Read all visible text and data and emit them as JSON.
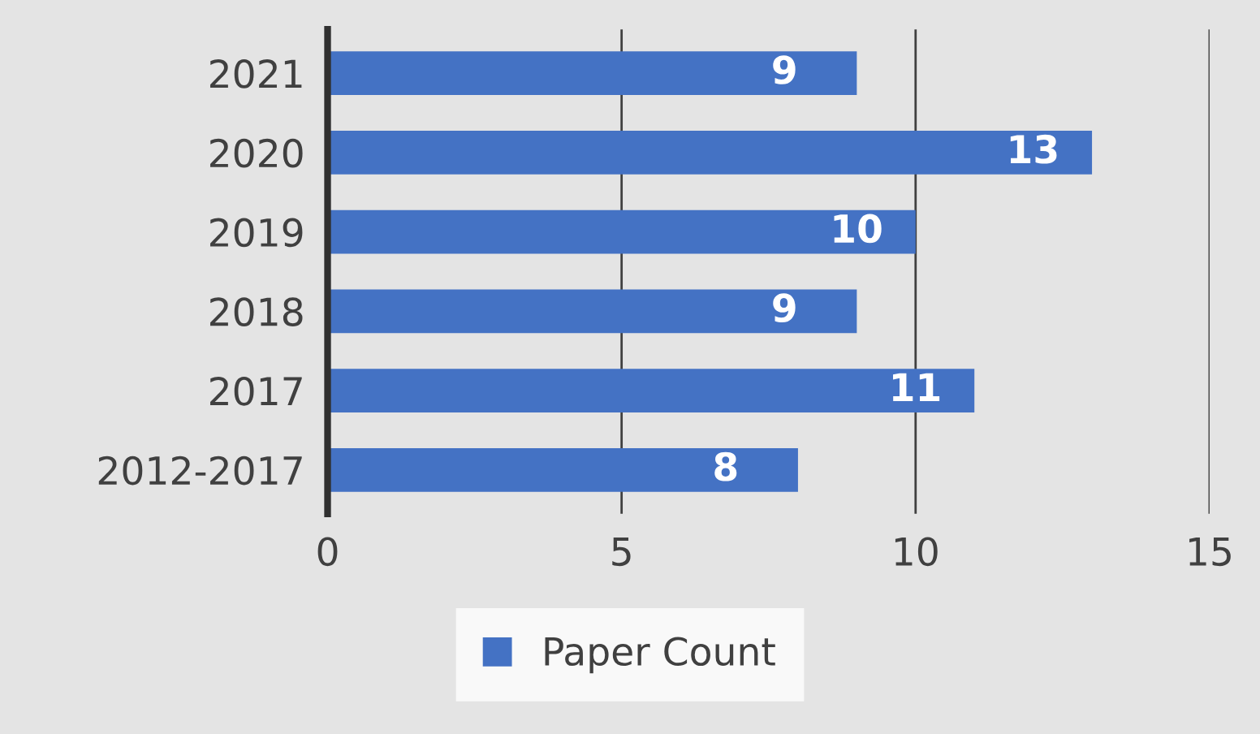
{
  "chart_data": {
    "type": "bar",
    "orientation": "horizontal",
    "categories": [
      "2021",
      "2020",
      "2019",
      "2018",
      "2017",
      "2012-2017"
    ],
    "series": [
      {
        "name": "Paper Count",
        "color": "#4472c4",
        "values": [
          9,
          13,
          10,
          9,
          11,
          8
        ]
      }
    ],
    "xlim": [
      0,
      15
    ],
    "xticks": [
      0,
      5,
      10,
      15
    ],
    "grid": "x",
    "legend": "bottom",
    "data_labels": true
  }
}
